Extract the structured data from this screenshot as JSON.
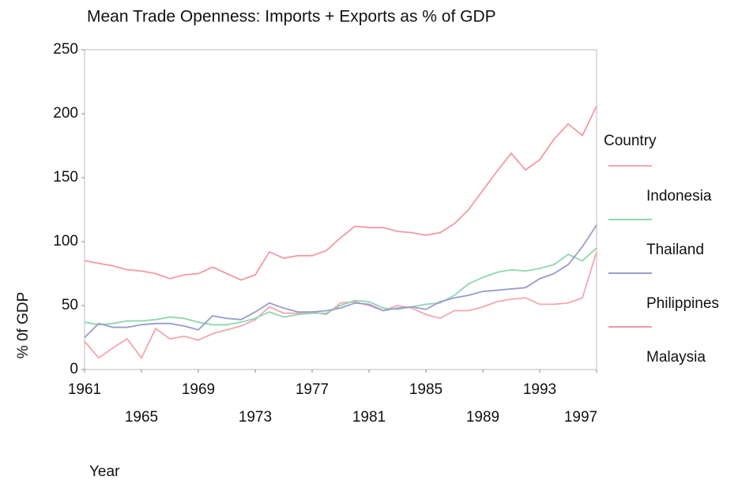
{
  "chart_data": {
    "type": "line",
    "title": "Mean Trade Openness: Imports + Exports as % of GDP",
    "x_label": "Year",
    "y_label": "% 0f GDP",
    "legend_title": "Country",
    "x": [
      1961,
      1962,
      1963,
      1964,
      1965,
      1966,
      1967,
      1968,
      1969,
      1970,
      1971,
      1972,
      1973,
      1974,
      1975,
      1976,
      1977,
      1978,
      1979,
      1980,
      1981,
      1982,
      1983,
      1984,
      1985,
      1986,
      1987,
      1988,
      1989,
      1990,
      1991,
      1992,
      1993,
      1994,
      1995,
      1996,
      1997
    ],
    "series": [
      {
        "name": "Indonesia",
        "color": "#f3a7b0",
        "values": [
          22,
          9,
          17,
          24,
          9,
          32,
          24,
          26,
          23,
          28,
          31,
          34,
          39,
          49,
          44,
          44,
          45,
          43,
          52,
          53,
          50,
          46,
          50,
          48,
          43,
          40,
          46,
          46,
          49,
          53,
          55,
          56,
          51,
          51,
          52,
          56,
          92
        ]
      },
      {
        "name": "Thailand",
        "color": "#8fd6b0",
        "values": [
          37,
          35,
          36,
          38,
          38,
          39,
          41,
          40,
          37,
          35,
          35,
          37,
          40,
          45,
          41,
          43,
          44,
          44,
          50,
          54,
          53,
          48,
          47,
          49,
          51,
          52,
          58,
          67,
          72,
          76,
          78,
          77,
          79,
          82,
          90,
          85,
          95
        ]
      },
      {
        "name": "Philippines",
        "color": "#9a9ccc",
        "values": [
          25,
          36,
          33,
          33,
          35,
          36,
          36,
          34,
          31,
          42,
          40,
          39,
          45,
          52,
          48,
          45,
          45,
          46,
          48,
          52,
          51,
          46,
          48,
          49,
          47,
          53,
          56,
          58,
          61,
          62,
          63,
          64,
          71,
          75,
          82,
          96,
          113
        ]
      },
      {
        "name": "Malaysia",
        "color": "#f29aa4",
        "values": [
          85,
          83,
          81,
          78,
          77,
          75,
          71,
          74,
          75,
          80,
          75,
          70,
          74,
          92,
          87,
          89,
          89,
          93,
          103,
          112,
          111,
          111,
          108,
          107,
          105,
          107,
          114,
          125,
          140,
          155,
          169,
          156,
          164,
          180,
          192,
          183,
          206
        ]
      }
    ],
    "xlim": [
      1961,
      1997
    ],
    "xticks": [
      1961,
      1965,
      1969,
      1973,
      1977,
      1981,
      1985,
      1989,
      1993,
      1997
    ],
    "ylim": [
      0,
      250
    ],
    "yticks": [
      0,
      50,
      100,
      150,
      200,
      250
    ]
  }
}
